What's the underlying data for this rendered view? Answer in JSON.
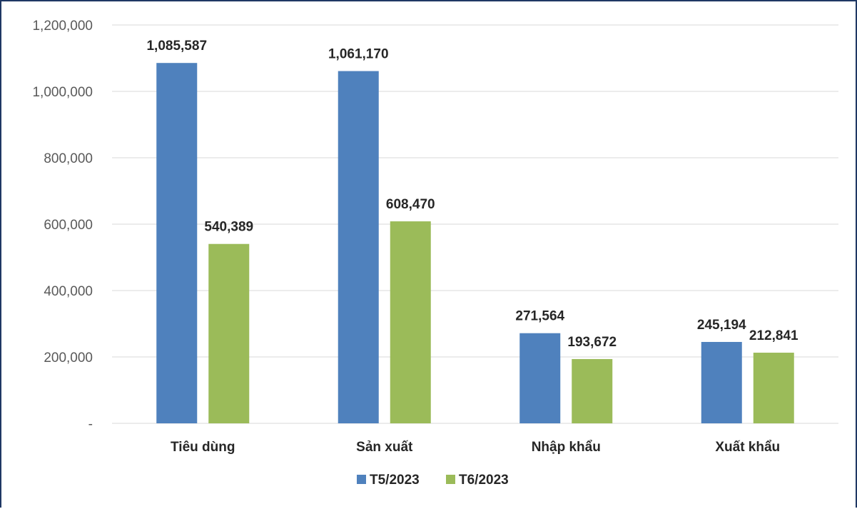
{
  "chart_data": {
    "type": "bar",
    "categories": [
      "Tiêu dùng",
      "Sản xuất",
      "Nhập khẩu",
      "Xuất khẩu"
    ],
    "series": [
      {
        "name": "T5/2023",
        "color": "#4f81bd",
        "values": [
          1085587,
          1061170,
          271564,
          245194
        ],
        "labels": [
          "1,085,587",
          "1,061,170",
          "271,564",
          "245,194"
        ]
      },
      {
        "name": "T6/2023",
        "color": "#9bbb59",
        "values": [
          540389,
          608470,
          193672,
          212841
        ],
        "labels": [
          "540,389",
          "608,470",
          "193,672",
          "212,841"
        ]
      }
    ],
    "ylim": [
      0,
      1200000
    ],
    "yticks": [
      0,
      200000,
      400000,
      600000,
      800000,
      1000000,
      1200000
    ],
    "ytick_labels": [
      "-",
      "200,000",
      "400,000",
      "600,000",
      "800,000",
      "1,000,000",
      "1,200,000"
    ],
    "gridlines": true,
    "legend_position": "bottom",
    "gridline_color": "#d9d9d9"
  }
}
